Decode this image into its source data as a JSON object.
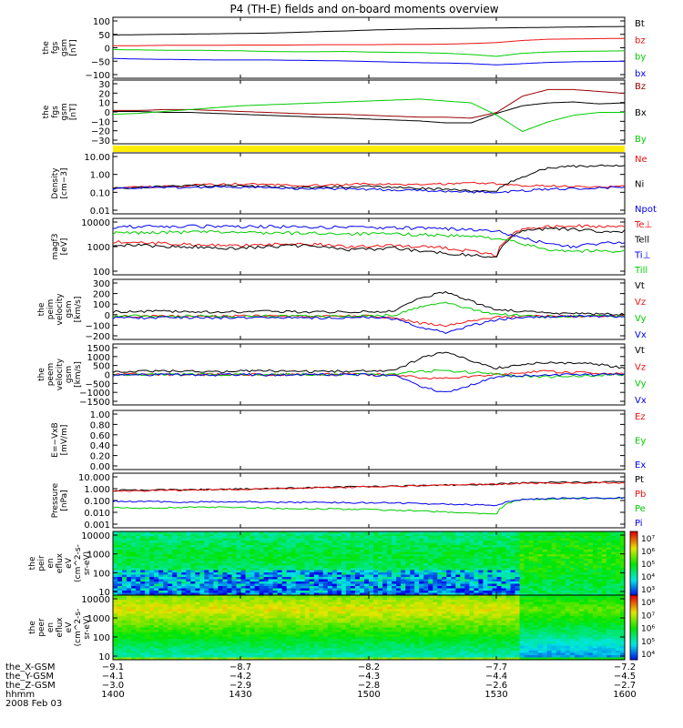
{
  "title": "P4 (TH-E) fields and on-board moments overview",
  "chart_data": [
    {
      "type": "line",
      "ylabel": [
        "the",
        "fgs",
        "gsm",
        "[nT]"
      ],
      "yticks": [
        "100",
        "50",
        "0",
        "−50",
        "−100"
      ],
      "ylim": [
        -100,
        100
      ],
      "series": [
        {
          "name": "Bt",
          "color": "#000000",
          "values": [
            42,
            43,
            44,
            45,
            46,
            47,
            48,
            50,
            53,
            55,
            58,
            60,
            62,
            63,
            64,
            65,
            66,
            67,
            68,
            69,
            70
          ]
        },
        {
          "name": "bz",
          "color": "#ee1111",
          "values": [
            7,
            7,
            8,
            8,
            8,
            9,
            9,
            9,
            10,
            10,
            10,
            11,
            11,
            12,
            14,
            17,
            24,
            28,
            29,
            30,
            31
          ]
        },
        {
          "name": "by",
          "color": "#00cc00",
          "values": [
            -6,
            -7,
            -8,
            -8,
            -9,
            -10,
            -12,
            -13,
            -13,
            -12,
            -14,
            -15,
            -16,
            -18,
            -22,
            -28,
            -18,
            -14,
            -12,
            -11,
            -10
          ]
        },
        {
          "name": "bx",
          "color": "#0000ee",
          "values": [
            -35,
            -37,
            -38,
            -39,
            -40,
            -40,
            -40,
            -41,
            -42,
            -43,
            -45,
            -47,
            -49,
            -50,
            -52,
            -56,
            -52,
            -48,
            -46,
            -45,
            -44
          ]
        }
      ]
    },
    {
      "type": "line",
      "ylabel": [
        "the",
        "fgs",
        "gsm",
        "[nT]"
      ],
      "yticks": [
        "30",
        "20",
        "10",
        "0",
        "−10",
        "−20",
        "−30"
      ],
      "ylim": [
        -35,
        32
      ],
      "series": [
        {
          "name": "Bz",
          "color": "#990000",
          "values": [
            0,
            0,
            1,
            1,
            0,
            -1,
            -2,
            -3,
            -4,
            -4,
            -5,
            -6,
            -7,
            -7,
            -8,
            -2,
            15,
            22,
            22,
            20,
            18
          ]
        },
        {
          "name": "Bx",
          "color": "#000000",
          "values": [
            -1,
            -1,
            -2,
            -2,
            -3,
            -4,
            -5,
            -6,
            -7,
            -8,
            -9,
            -10,
            -11,
            -13,
            -13,
            -3,
            5,
            8,
            9,
            7,
            8
          ]
        },
        {
          "name": "By",
          "color": "#00cc00",
          "values": [
            -4,
            -3,
            -1,
            1,
            3,
            5,
            6,
            7,
            8,
            9,
            10,
            11,
            12,
            10,
            8,
            -5,
            -22,
            -12,
            -5,
            -2,
            -2
          ]
        }
      ]
    },
    {
      "type": "line",
      "ylabel": [
        "Density",
        "[cm−3]"
      ],
      "yticks": [
        "10.00",
        "1.00",
        "0.10",
        "0.01"
      ],
      "ylim": [
        0.01,
        10
      ],
      "yscale": "log",
      "series": [
        {
          "name": "Ne",
          "color": "#ee1111",
          "values": [
            0.2,
            0.21,
            0.22,
            0.25,
            0.28,
            0.3,
            0.28,
            0.26,
            0.25,
            0.27,
            0.3,
            0.28,
            0.27,
            0.3,
            0.35,
            0.3,
            0.25,
            0.24,
            0.23,
            0.22,
            0.22
          ]
        },
        {
          "name": "Ni",
          "color": "#000000",
          "values": [
            0.2,
            0.2,
            0.22,
            0.24,
            0.25,
            0.24,
            0.22,
            0.2,
            0.2,
            0.22,
            0.22,
            0.2,
            0.18,
            0.16,
            0.14,
            0.12,
            0.6,
            1.8,
            2.2,
            2.3,
            2.5
          ]
        },
        {
          "name": "Npot",
          "color": "#0000ee",
          "values": [
            0.18,
            0.19,
            0.2,
            0.2,
            0.21,
            0.2,
            0.19,
            0.18,
            0.17,
            0.17,
            0.16,
            0.15,
            0.14,
            0.13,
            0.12,
            0.11,
            0.14,
            0.16,
            0.18,
            0.19,
            0.2
          ]
        }
      ]
    },
    {
      "type": "line",
      "ylabel": [
        "magf3",
        "[eV]"
      ],
      "yticks": [
        "10000",
        "1000",
        "100"
      ],
      "ylim": [
        100,
        10000
      ],
      "yscale": "log",
      "series": [
        {
          "name": "Te⊥",
          "color": "#ee1111",
          "values": [
            1500,
            1400,
            1300,
            1200,
            1100,
            1100,
            1200,
            1300,
            1200,
            1000,
            1000,
            1100,
            1000,
            900,
            700,
            500,
            4000,
            5000,
            5500,
            5000,
            5000
          ]
        },
        {
          "name": "Tell",
          "color": "#000000",
          "values": [
            1200,
            1100,
            1000,
            1000,
            900,
            900,
            1000,
            1100,
            1000,
            800,
            800,
            900,
            700,
            600,
            500,
            400,
            3500,
            4500,
            4000,
            3500,
            3500
          ]
        },
        {
          "name": "Ti⊥",
          "color": "#0000ee",
          "values": [
            5000,
            5200,
            5200,
            5300,
            5300,
            5200,
            5100,
            5000,
            5000,
            4800,
            4700,
            4700,
            4500,
            4300,
            4000,
            3500,
            2000,
            1200,
            1000,
            1300,
            1400
          ]
        },
        {
          "name": "Till",
          "color": "#00cc00",
          "values": [
            3000,
            3100,
            3200,
            3300,
            3300,
            3200,
            3100,
            3000,
            3000,
            2900,
            2800,
            2800,
            2700,
            2500,
            2300,
            2000,
            1200,
            800,
            700,
            700,
            700
          ]
        }
      ]
    },
    {
      "type": "line",
      "ylabel": [
        "the",
        "peim",
        "velocity",
        "gsm",
        "[km/s]"
      ],
      "yticks": [
        "300",
        "200",
        "100",
        "0",
        "−100",
        "−200"
      ],
      "ylim": [
        -200,
        320
      ],
      "series": [
        {
          "name": "Vt",
          "color": "#000000",
          "values": [
            40,
            40,
            45,
            40,
            35,
            40,
            45,
            40,
            35,
            40,
            40,
            45,
            160,
            210,
            130,
            60,
            40,
            30,
            25,
            20,
            20
          ]
        },
        {
          "name": "Vz",
          "color": "#ee1111",
          "values": [
            0,
            0,
            5,
            0,
            0,
            5,
            0,
            0,
            0,
            5,
            0,
            -10,
            -60,
            -80,
            -40,
            -10,
            0,
            0,
            0,
            0,
            0
          ]
        },
        {
          "name": "Vy",
          "color": "#00cc00",
          "values": [
            0,
            5,
            0,
            5,
            0,
            0,
            5,
            0,
            0,
            0,
            5,
            10,
            80,
            120,
            60,
            20,
            5,
            0,
            0,
            0,
            0
          ]
        },
        {
          "name": "Vx",
          "color": "#0000ee",
          "values": [
            -10,
            -15,
            -10,
            -10,
            -15,
            -10,
            -10,
            -10,
            -15,
            -10,
            -10,
            -20,
            -100,
            -140,
            -80,
            -30,
            -10,
            -5,
            0,
            0,
            0
          ]
        }
      ]
    },
    {
      "type": "line",
      "ylabel": [
        "the",
        "peem",
        "velocity",
        "gsm",
        "[km/s]"
      ],
      "yticks": [
        "1500",
        "1000",
        "500",
        "0",
        "−500",
        "−1000",
        "−1500"
      ],
      "ylim": [
        -1500,
        1500
      ],
      "series": [
        {
          "name": "Vt",
          "color": "#000000",
          "values": [
            150,
            160,
            170,
            150,
            140,
            160,
            170,
            150,
            140,
            160,
            170,
            180,
            800,
            1100,
            700,
            300,
            500,
            600,
            550,
            500,
            300
          ]
        },
        {
          "name": "Vz",
          "color": "#ee1111",
          "values": [
            0,
            10,
            0,
            -10,
            0,
            10,
            0,
            -10,
            0,
            10,
            0,
            -20,
            -150,
            -200,
            -100,
            0,
            100,
            150,
            100,
            50,
            20
          ]
        },
        {
          "name": "Vy",
          "color": "#00cc00",
          "values": [
            0,
            -10,
            0,
            10,
            0,
            -10,
            0,
            10,
            0,
            -10,
            0,
            20,
            150,
            200,
            100,
            0,
            -80,
            -120,
            -80,
            -40,
            0
          ]
        },
        {
          "name": "Vx",
          "color": "#0000ee",
          "values": [
            -20,
            -10,
            -20,
            -10,
            -20,
            -10,
            -20,
            -10,
            -20,
            -10,
            -20,
            -50,
            -600,
            -900,
            -500,
            -100,
            -50,
            -30,
            -20,
            -10,
            0
          ]
        }
      ]
    },
    {
      "type": "line",
      "ylabel": [
        "E=−VxB",
        "[mV/m]"
      ],
      "yticks": [
        "1.00",
        "0.80",
        "0.60",
        "0.40",
        "0.20",
        "0.00"
      ],
      "ylim": [
        0,
        1
      ],
      "series": [
        {
          "name": "Ez",
          "color": "#ee1111",
          "values": []
        },
        {
          "name": "Ey",
          "color": "#00cc00",
          "values": []
        },
        {
          "name": "Ex",
          "color": "#0000ee",
          "values": []
        }
      ]
    },
    {
      "type": "line",
      "ylabel": [
        "Pressure",
        "[nPa]"
      ],
      "yticks": [
        "10.000",
        "1.000",
        "0.100",
        "0.010",
        "0.001"
      ],
      "ylim": [
        0.001,
        10
      ],
      "yscale": "log",
      "series": [
        {
          "name": "Pt",
          "color": "#000000",
          "values": [
            0.55,
            0.57,
            0.6,
            0.62,
            0.65,
            0.7,
            0.75,
            0.8,
            0.88,
            0.95,
            1.05,
            1.15,
            1.25,
            1.35,
            1.45,
            1.6,
            1.9,
            2.1,
            2.2,
            2.3,
            2.4
          ]
        },
        {
          "name": "Pb",
          "color": "#ee1111",
          "values": [
            0.5,
            0.52,
            0.55,
            0.58,
            0.62,
            0.66,
            0.72,
            0.78,
            0.86,
            0.93,
            1.02,
            1.12,
            1.22,
            1.34,
            1.45,
            1.6,
            1.8,
            1.9,
            1.95,
            2.0,
            2.0
          ]
        },
        {
          "name": "Pe",
          "color": "#00cc00",
          "values": [
            0.03,
            0.028,
            0.03,
            0.032,
            0.033,
            0.03,
            0.028,
            0.026,
            0.025,
            0.024,
            0.022,
            0.02,
            0.017,
            0.014,
            0.012,
            0.01,
            0.12,
            0.13,
            0.14,
            0.14,
            0.15
          ]
        },
        {
          "name": "Pi",
          "color": "#0000ee",
          "values": [
            0.09,
            0.085,
            0.08,
            0.078,
            0.08,
            0.08,
            0.078,
            0.075,
            0.072,
            0.07,
            0.068,
            0.065,
            0.06,
            0.055,
            0.05,
            0.045,
            0.12,
            0.14,
            0.15,
            0.15,
            0.16
          ]
        }
      ]
    },
    {
      "type": "heatmap",
      "ylabel": [
        "the",
        "peir",
        "en",
        "eflux",
        "eV",
        "(cm^2-s-",
        "sr-eV)"
      ],
      "yticks": [
        "10000",
        "1000",
        "100",
        "10"
      ],
      "ylim": [
        10,
        30000
      ],
      "yscale": "log",
      "colorbar_ticks": [
        "10⁷",
        "10⁶",
        "10⁵",
        "10⁴",
        "10³"
      ]
    },
    {
      "type": "heatmap",
      "ylabel": [
        "the",
        "peer",
        "en",
        "eflux",
        "eV",
        "(cm^2-s-",
        "sr-eV)"
      ],
      "yticks": [
        "10000",
        "1000",
        "100",
        "10"
      ],
      "ylim": [
        7,
        30000
      ],
      "yscale": "log",
      "colorbar_ticks": [
        "10⁸",
        "10⁷",
        "10⁶",
        "10⁵",
        "10⁴"
      ]
    }
  ],
  "footer": {
    "rows": [
      {
        "label": "the_X-GSM",
        "values": [
          "−9.1",
          "−8.7",
          "−8.2",
          "−7.7",
          "−7.2"
        ]
      },
      {
        "label": "the_Y-GSM",
        "values": [
          "−4.1",
          "−4.2",
          "−4.3",
          "−4.4",
          "−4.5"
        ]
      },
      {
        "label": "the_Z-GSM",
        "values": [
          "−3.0",
          "−2.9",
          "−2.8",
          "−2.6",
          "−2.7"
        ]
      },
      {
        "label": "hhmm",
        "values": [
          "1400",
          "1430",
          "1500",
          "1530",
          "1600"
        ]
      }
    ],
    "date": "2008 Feb 03"
  }
}
